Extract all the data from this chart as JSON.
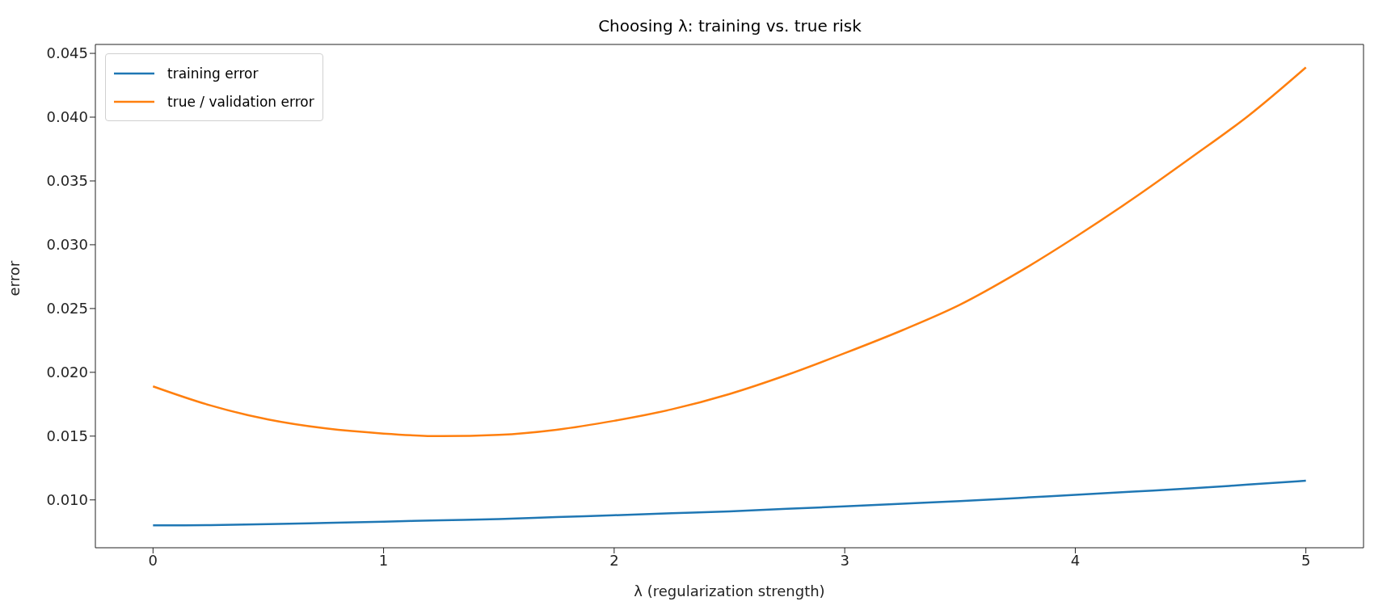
{
  "chart_data": {
    "type": "line",
    "title": "Choosing λ: training vs. true risk",
    "xlabel": "λ (regularization strength)",
    "ylabel": "error",
    "x": [
      0,
      0.25,
      0.5,
      0.75,
      1,
      1.25,
      1.5,
      1.75,
      2,
      2.25,
      2.5,
      2.75,
      3,
      3.25,
      3.5,
      3.75,
      4,
      4.25,
      4.5,
      4.75,
      5
    ],
    "series": [
      {
        "name": "training error",
        "color": "#1f77b4",
        "values": [
          0.008,
          0.00803,
          0.0081,
          0.0082,
          0.0083,
          0.0084,
          0.0085,
          0.00865,
          0.0088,
          0.00895,
          0.0091,
          0.0093,
          0.0095,
          0.0097,
          0.0099,
          0.01015,
          0.0104,
          0.01065,
          0.0109,
          0.0112,
          0.0115
        ]
      },
      {
        "name": "true / validation error",
        "color": "#ff7f0e",
        "values": [
          0.0189,
          0.0174,
          0.0163,
          0.0156,
          0.0152,
          0.015,
          0.0151,
          0.0155,
          0.0162,
          0.0171,
          0.0183,
          0.0198,
          0.0215,
          0.0233,
          0.0253,
          0.0278,
          0.0306,
          0.0336,
          0.0368,
          0.0401,
          0.0439
        ]
      }
    ],
    "xlim": [
      -0.25,
      5.25
    ],
    "xticks": [
      0,
      1,
      2,
      3,
      4,
      5
    ],
    "ylim": [
      0.00625,
      0.0457
    ],
    "yticks": [
      {
        "value": 0.01,
        "label": "0.010"
      },
      {
        "value": 0.015,
        "label": "0.015"
      },
      {
        "value": 0.02,
        "label": "0.020"
      },
      {
        "value": 0.025,
        "label": "0.025"
      },
      {
        "value": 0.03,
        "label": "0.030"
      },
      {
        "value": 0.035,
        "label": "0.035"
      },
      {
        "value": 0.04,
        "label": "0.040"
      },
      {
        "value": 0.045,
        "label": "0.045"
      }
    ],
    "grid": false,
    "legend": "top left",
    "marker": "none",
    "line_style": "solid"
  }
}
